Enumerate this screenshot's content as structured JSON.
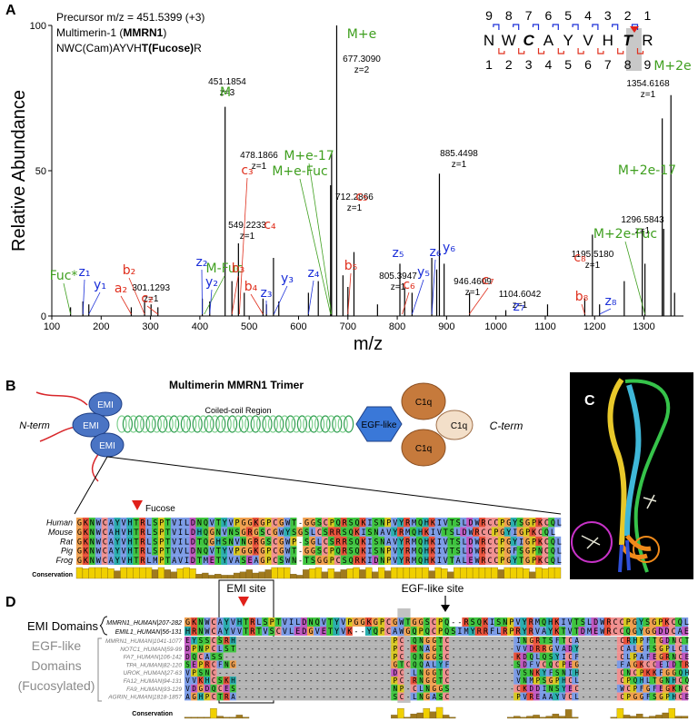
{
  "panel_a": {
    "label": "A",
    "info": [
      [
        "Precursor m/z = 451.5399 (+3)"
      ],
      [
        "Multimerin-1 (",
        "MMRN1",
        ")"
      ],
      [
        "NWC(Cam)AYVH",
        "T(Fucose)",
        "R"
      ]
    ],
    "fragment_map": {
      "top_numbers": [
        9,
        8,
        7,
        6,
        5,
        4,
        3,
        2,
        1
      ],
      "residues": [
        "N",
        "W",
        "C",
        "A",
        "Y",
        "V",
        "H",
        "T",
        "R"
      ],
      "bottom_numbers": [
        1,
        2,
        3,
        4,
        5,
        6,
        7,
        8,
        9
      ]
    },
    "chart_data": {
      "type": "spectrum",
      "xlabel": "m/z",
      "ylabel": "Relative Abundance",
      "xlim": [
        100,
        1380
      ],
      "ylim": [
        0,
        100
      ],
      "xticks": [
        100,
        200,
        300,
        400,
        500,
        600,
        700,
        800,
        900,
        1000,
        1100,
        1200,
        1300
      ],
      "yticks": [
        0,
        50,
        100
      ],
      "color": "#000000",
      "x": [
        138,
        163,
        175,
        261,
        288,
        301.1293,
        315,
        405,
        420,
        451.1854,
        465,
        478.1866,
        490,
        528,
        535,
        549.2233,
        560,
        620,
        640,
        665,
        667,
        677.309,
        690,
        700,
        712.2866,
        760,
        805.3947,
        815,
        830,
        870,
        880,
        885.4498,
        895,
        946.4609,
        1020,
        1104.6042,
        1180,
        1195.518,
        1210,
        1260,
        1296.5843,
        1302,
        1337,
        1340,
        1354.6168,
        1362
      ],
      "values": [
        3,
        5,
        4,
        3,
        5,
        4,
        3,
        6,
        5,
        72,
        12,
        25,
        8,
        6,
        4,
        20,
        5,
        8,
        12,
        45,
        56,
        100,
        14,
        10,
        22,
        4,
        18,
        10,
        8,
        20,
        16,
        49,
        18,
        8,
        2,
        4,
        6,
        28,
        4,
        12,
        30,
        18,
        68,
        30,
        76,
        8
      ],
      "x_labels": [
        null,
        null,
        null,
        null,
        null,
        "301.1293",
        null,
        null,
        null,
        "451.1854",
        null,
        "478.1866",
        null,
        null,
        null,
        "549.2233",
        null,
        null,
        null,
        null,
        null,
        "677.3090",
        null,
        null,
        "712.2866",
        null,
        "805.3947",
        null,
        null,
        null,
        null,
        "885.4498",
        null,
        "946.4609",
        null,
        "1104.6042",
        null,
        "1195.5180",
        null,
        null,
        "1296.5843",
        null,
        null,
        null,
        "1354.6168",
        null
      ],
      "charges": [
        null,
        null,
        null,
        null,
        null,
        "z=1",
        null,
        null,
        null,
        "z=3",
        null,
        "z=1",
        null,
        null,
        null,
        "z=1",
        null,
        null,
        null,
        null,
        null,
        "z=2",
        null,
        null,
        "z=1",
        null,
        "z=1",
        null,
        null,
        null,
        null,
        "z=1",
        null,
        "z=1",
        null,
        "z=1",
        null,
        "z=1",
        null,
        null,
        "z=1",
        null,
        null,
        null,
        "z=1",
        null
      ],
      "ions": [
        {
          "text": "Fuc*",
          "mz": 138,
          "color": "#3f9f1f"
        },
        {
          "text": "M-Fuc",
          "mz": 409,
          "color": "#3f9f1f"
        },
        {
          "text": "M",
          "mz": 451,
          "color": "#3f9f1f"
        },
        {
          "text": "M+e",
          "mz": 677,
          "color": "#3f9f1f"
        },
        {
          "text": "M+e-17",
          "mz": 667,
          "color": "#3f9f1f"
        },
        {
          "text": "M+e-Fuc",
          "mz": 665,
          "color": "#3f9f1f"
        },
        {
          "text": "M+2e",
          "mz": 1354,
          "color": "#3f9f1f"
        },
        {
          "text": "M+2e-17",
          "mz": 1337,
          "color": "#3f9f1f"
        },
        {
          "text": "M+2e-Fuc",
          "mz": 1302,
          "color": "#3f9f1f"
        },
        {
          "text": "a₂",
          "mz": 261,
          "color": "#e0301e"
        },
        {
          "text": "b₂",
          "mz": 288,
          "color": "#e0301e"
        },
        {
          "text": "c₂",
          "mz": 315,
          "color": "#e0301e"
        },
        {
          "text": "b₃",
          "mz": 465,
          "color": "#e0301e"
        },
        {
          "text": "c₃",
          "mz": 480,
          "color": "#e0301e"
        },
        {
          "text": "b₄",
          "mz": 528,
          "color": "#e0301e"
        },
        {
          "text": "c₄",
          "mz": 540,
          "color": "#e0301e"
        },
        {
          "text": "b₅",
          "mz": 700,
          "color": "#e0301e"
        },
        {
          "text": "c₅",
          "mz": 712,
          "color": "#e0301e"
        },
        {
          "text": "c₆",
          "mz": 810,
          "color": "#e0301e"
        },
        {
          "text": "c₇",
          "mz": 946,
          "color": "#e0301e"
        },
        {
          "text": "b₈",
          "mz": 1180,
          "color": "#e0301e"
        },
        {
          "text": "c₈",
          "mz": 1195,
          "color": "#e0301e"
        },
        {
          "text": "z₁",
          "mz": 163,
          "color": "#1a2ed8"
        },
        {
          "text": "y₁",
          "mz": 175,
          "color": "#1a2ed8"
        },
        {
          "text": "z₂",
          "mz": 405,
          "color": "#1a2ed8"
        },
        {
          "text": "y₂",
          "mz": 420,
          "color": "#1a2ed8"
        },
        {
          "text": "z₃",
          "mz": 535,
          "color": "#1a2ed8"
        },
        {
          "text": "y₃",
          "mz": 550,
          "color": "#1a2ed8"
        },
        {
          "text": "z₄",
          "mz": 620,
          "color": "#1a2ed8"
        },
        {
          "text": "z₅",
          "mz": 805,
          "color": "#1a2ed8"
        },
        {
          "text": "y₅",
          "mz": 830,
          "color": "#1a2ed8"
        },
        {
          "text": "z₆",
          "mz": 870,
          "color": "#1a2ed8"
        },
        {
          "text": "y₆",
          "mz": 895,
          "color": "#1a2ed8"
        },
        {
          "text": "z₇",
          "mz": 1020,
          "color": "#1a2ed8"
        },
        {
          "text": "z₈",
          "mz": 1210,
          "color": "#1a2ed8"
        }
      ]
    }
  },
  "panel_b": {
    "label": "B",
    "title": "Multimerin MMRN1 Trimer",
    "emi": [
      "EMI",
      "EMI",
      "EMI"
    ],
    "n_term": "N-term",
    "coiled_coil": "Coiled-coil Region",
    "egf": "EGF-like",
    "c1q": [
      "C1q",
      "C1q",
      "C1q"
    ],
    "c_term": "C-term",
    "fucose": "Fucose",
    "alignment": {
      "rows": [
        {
          "species": "Human",
          "sequence": "GKNWCAYVHTRLSPTVILDNQVTYVPGGKGPCGWT-GGSCPQRSQKISNPVYRMQHKIVTSLDWRCCPGYSGPKCQL"
        },
        {
          "species": "Mouse",
          "sequence": "GKNWCAHVHTRLSPTVILDHQGNVNSGRGSCGWYSGSLCSRRSQKISNAVYRMQHKIVTSLDWRCCPGYIGPKCQL"
        },
        {
          "species": "Rat",
          "sequence": "GKNWCAYVHTRLSPTVILDTQGHSNVNGRGSCGWP-SGLCSRRSQKISNAVYRMQHKIVTSLDWRCCPGYIGPKCQL"
        },
        {
          "species": "Pig",
          "sequence": "GKNWCAYVHTRLSPTVVLDNQVTYVPGGKGPCGWT-GGSCPQRSQKISNPVYRMQHKIVTSLDWRCCPGFSGPNCQL"
        },
        {
          "species": "Frog",
          "sequence": "GKNWCAYVHTRLMPTAVIDTMETYVASEAGPCSWN-TSGGPCSQRKIDNPVYRMQHKIVTALEWRCCPGYTGPKCQL"
        }
      ],
      "conservation_label": "Conservation",
      "conservation": [
        10,
        9,
        10,
        10,
        10,
        9,
        7,
        10,
        10,
        10,
        10,
        10,
        8,
        10,
        8,
        6,
        9,
        10,
        9,
        4,
        5,
        3,
        4,
        3,
        3,
        5,
        6,
        8,
        5,
        6,
        8,
        10,
        10,
        10,
        4,
        3,
        8,
        9,
        10,
        6,
        9,
        6,
        8,
        9,
        10,
        8,
        10,
        6,
        10,
        7,
        10,
        10,
        10,
        10,
        10,
        10,
        7,
        10,
        9,
        6,
        10,
        10,
        10,
        10,
        10,
        10,
        10,
        8,
        10,
        10,
        10,
        9,
        6,
        10,
        9,
        10,
        10
      ]
    }
  },
  "panel_c": {
    "label": "C"
  },
  "panel_d": {
    "label": "D",
    "emi_site": "EMI site",
    "egf_site": "EGF-like site",
    "emi_domains": "EMI Domains",
    "egf_domains": [
      "EGF-like",
      "Domains",
      "(Fucosylated)"
    ],
    "emi_rows": [
      {
        "name": "MMRN1_HUMAN|207-282",
        "sequence": "GKNWCAYVHTRLSPTVILDNQVTYVPGGKGPCGWTGGSCPQ--RSQKISNPVYRMQHKIVTSLDWRCCPGYSGPKCQL"
      },
      {
        "name": "EMIL1_HUMAN|56-131",
        "sequence": "HRNWCAYVVTRTVSCVLEDGVETYVK--YQPCAWGQPQCPQSIMYRRFLRPRYRVAYKTVTDMEWRCCQGYGGDDCAE"
      }
    ],
    "egf_rows": [
      {
        "name": "MMRN1_HUMAN|1041-1077",
        "sequence": "EYSSCSRH------------------------PC-QNGGTC----------INGRTSFTCA------CRHPFTGDNCT"
      },
      {
        "name": "NOTC1_HUMAN|59-99",
        "sequence": "DPNPCLST------------------------PC-KNAGTC----------VVDRRGVADY------CALGFSGPLCL"
      },
      {
        "name": "FA7_HUMAN|106-142",
        "sequence": "DQCASS--------------------------PC-QNGGSC----------KDQLQSYICF------CLPAFEGRNCE"
      },
      {
        "name": "TPA_HUMAN|82-120",
        "sequence": "SEPRCFNG------------------------GTCQQALYF----------SDFVCQCPEG------FAGKCCEIDTR"
      },
      {
        "name": "UROK_HUMAN|27-63",
        "sequence": "VPSNC---------------------------DC-LNGGTC----------VSNKYFSNIH------CNCPKKFGGQH"
      },
      {
        "name": "FA12_HUMAN|94-131",
        "sequence": "VVKHCSKH------------------------PC-RNGGTC----------VNMPSGPHCL------CPQHLTGNHCQ"
      },
      {
        "name": "FA9_HUMAN|93-129",
        "sequence": "VDGDQCES------------------------NP-CLNGGS----------CKDDINSYEC------WCPFGFEGKNC"
      },
      {
        "name": "AGRIN_HUMAN|1818-1857",
        "sequence": "AGHPCTRA------------------------SC-LNGASC----------PVREAAYVCL------CPGGFSGPHCE"
      }
    ],
    "conservation_label": "Conservation",
    "conservation": [
      1,
      1,
      1,
      1,
      9,
      2,
      1,
      1,
      3,
      1,
      0,
      0,
      0,
      0,
      0,
      0,
      0,
      0,
      0,
      0,
      0,
      0,
      0,
      0,
      0,
      0,
      0,
      0,
      0,
      0,
      0,
      0,
      3,
      9,
      1,
      4,
      5,
      9,
      6,
      10,
      3,
      1,
      0,
      0,
      0,
      0,
      0,
      0,
      0,
      0,
      1,
      2,
      1,
      2,
      3,
      1,
      2,
      4,
      2,
      8,
      1,
      0,
      0,
      0,
      0,
      0,
      1,
      9,
      3,
      2,
      4,
      1,
      2,
      3,
      5,
      9,
      2,
      2
    ]
  }
}
